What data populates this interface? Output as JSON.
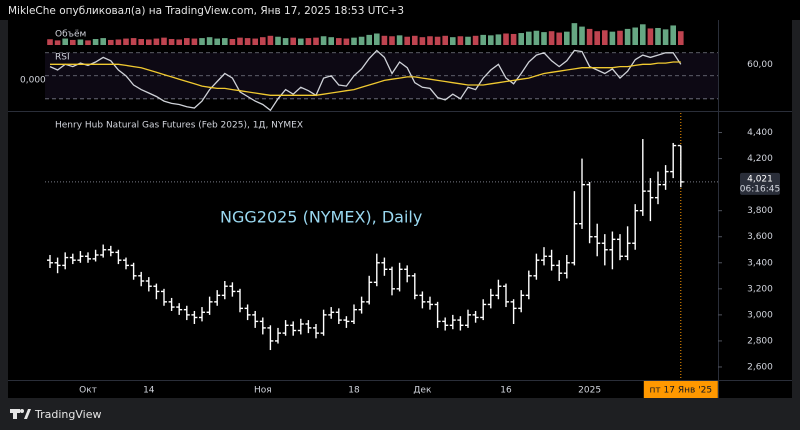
{
  "header": {
    "text": "MikleChe опубликовал(а) на TradingView.com, Янв 17, 2025 18:53 UTC+3",
    "brand": "TradingView"
  },
  "chart_data": [
    {
      "type": "bar",
      "title": "Объём",
      "values": [
        25,
        20,
        28,
        22,
        24,
        20,
        26,
        30,
        22,
        24,
        28,
        30,
        26,
        24,
        28,
        32,
        26,
        24,
        30,
        28,
        30,
        34,
        28,
        30,
        26,
        32,
        30,
        28,
        34,
        40,
        36,
        30,
        32,
        28,
        30,
        32,
        38,
        34,
        30,
        28,
        32,
        36,
        44,
        50,
        40,
        38,
        42,
        36,
        40,
        34,
        38,
        36,
        40,
        34,
        38,
        36,
        40,
        44,
        42,
        46,
        50,
        48,
        52,
        58,
        62,
        56,
        60,
        54,
        58,
        95,
        80,
        70,
        60,
        64,
        58,
        62,
        70,
        76,
        90,
        72,
        74,
        68,
        85,
        60
      ],
      "ylim": [
        0,
        100
      ],
      "up_color": "#78c49a",
      "down_color": "#e0505e"
    },
    {
      "type": "line",
      "title": "RSI",
      "left_label": "0,000",
      "series": [
        {
          "color": "#cfd2d8",
          "values": [
            58,
            55,
            60,
            58,
            61,
            59,
            62,
            66,
            63,
            55,
            50,
            42,
            38,
            35,
            32,
            28,
            26,
            25,
            23,
            22,
            28,
            38,
            45,
            52,
            48,
            36,
            32,
            28,
            25,
            20,
            30,
            38,
            34,
            40,
            37,
            33,
            48,
            50,
            42,
            41,
            50,
            56,
            65,
            72,
            66,
            52,
            62,
            57,
            44,
            40,
            39,
            31,
            29,
            34,
            30,
            40,
            38,
            48,
            55,
            60,
            48,
            43,
            52,
            62,
            68,
            70,
            63,
            58,
            63,
            72,
            71,
            58,
            55,
            52,
            56,
            48,
            54,
            64,
            68,
            66,
            68,
            70,
            70,
            60
          ]
        },
        {
          "color": "#f0c930",
          "values": [
            60,
            60,
            60,
            60,
            60,
            60,
            60,
            60,
            60,
            60,
            59,
            58,
            57,
            55,
            53,
            51,
            49,
            47,
            45,
            43,
            41,
            40,
            39,
            39,
            38,
            37,
            36,
            35,
            34,
            33,
            33,
            33,
            33,
            33,
            33,
            33,
            34,
            35,
            36,
            37,
            38,
            40,
            42,
            44,
            46,
            47,
            48,
            49,
            49,
            48,
            47,
            46,
            45,
            44,
            43,
            42,
            42,
            42,
            43,
            44,
            45,
            46,
            47,
            48,
            50,
            52,
            53,
            54,
            55,
            56,
            57,
            57,
            57,
            57,
            57,
            58,
            58,
            59,
            60,
            60,
            61,
            61,
            62,
            62
          ]
        }
      ],
      "ylim": [
        22,
        75
      ],
      "yticks": [
        {
          "value": 60,
          "label": "60,00"
        }
      ],
      "levels": [
        70,
        50,
        30
      ],
      "band_color": "#7e57c2"
    },
    {
      "type": "ohlc",
      "title": "Henry Hub Natural Gas Futures (Feb 2025), 1Д, NYMEX",
      "annotation": "NGG2025 (NYMEX), Daily",
      "categories": [
        null,
        null,
        null,
        null,
        null,
        "Окт",
        null,
        null,
        null,
        null,
        null,
        null,
        null,
        "14",
        null,
        null,
        null,
        null,
        null,
        null,
        null,
        null,
        null,
        null,
        null,
        null,
        null,
        null,
        "Ноя",
        null,
        null,
        null,
        null,
        null,
        null,
        null,
        null,
        null,
        null,
        null,
        "18",
        null,
        null,
        null,
        null,
        null,
        null,
        null,
        null,
        "Дек",
        null,
        null,
        null,
        null,
        null,
        null,
        null,
        null,
        null,
        null,
        "16",
        null,
        null,
        null,
        null,
        null,
        null,
        null,
        null,
        null,
        null,
        "2025",
        null,
        null,
        null,
        null,
        null,
        null,
        null,
        null,
        null,
        null,
        null,
        "пт 17 Янв '25"
      ],
      "open": [
        3.42,
        3.4,
        3.38,
        3.44,
        3.42,
        3.45,
        3.43,
        3.46,
        3.5,
        3.48,
        3.42,
        3.38,
        3.3,
        3.26,
        3.22,
        3.18,
        3.1,
        3.06,
        3.04,
        3.0,
        2.98,
        3.02,
        3.1,
        3.15,
        3.22,
        3.18,
        3.05,
        3.0,
        2.95,
        2.9,
        2.8,
        2.86,
        2.92,
        2.88,
        2.93,
        2.9,
        2.86,
        3.0,
        3.02,
        2.96,
        2.95,
        3.04,
        3.1,
        3.25,
        3.4,
        3.35,
        3.2,
        3.35,
        3.3,
        3.15,
        3.1,
        3.08,
        2.95,
        2.92,
        2.96,
        2.92,
        3.0,
        2.98,
        3.08,
        3.15,
        3.22,
        3.1,
        3.05,
        3.15,
        3.3,
        3.42,
        3.45,
        3.38,
        3.32,
        3.4,
        3.7,
        4.0,
        3.6,
        3.55,
        3.5,
        3.58,
        3.45,
        3.55,
        3.8,
        3.95,
        3.9,
        4.0,
        4.1,
        4.3
      ],
      "high": [
        3.46,
        3.44,
        3.48,
        3.47,
        3.49,
        3.48,
        3.5,
        3.54,
        3.53,
        3.5,
        3.44,
        3.4,
        3.33,
        3.29,
        3.24,
        3.2,
        3.13,
        3.09,
        3.07,
        3.03,
        3.06,
        3.14,
        3.19,
        3.26,
        3.25,
        3.2,
        3.08,
        3.03,
        2.98,
        2.92,
        2.9,
        2.96,
        2.95,
        2.97,
        2.96,
        2.93,
        3.04,
        3.06,
        3.05,
        2.99,
        3.08,
        3.14,
        3.3,
        3.47,
        3.44,
        3.37,
        3.4,
        3.38,
        3.32,
        3.18,
        3.14,
        3.1,
        2.98,
        3.0,
        2.99,
        3.04,
        3.03,
        3.12,
        3.2,
        3.27,
        3.24,
        3.12,
        3.19,
        3.34,
        3.47,
        3.52,
        3.5,
        3.42,
        3.46,
        3.95,
        4.2,
        4.02,
        3.7,
        3.62,
        3.64,
        3.62,
        3.68,
        3.85,
        4.35,
        4.05,
        4.1,
        4.15,
        4.32,
        4.3
      ],
      "low": [
        3.36,
        3.32,
        3.35,
        3.39,
        3.4,
        3.4,
        3.41,
        3.44,
        3.45,
        3.39,
        3.35,
        3.27,
        3.22,
        3.18,
        3.12,
        3.07,
        3.03,
        3.0,
        2.96,
        2.93,
        2.95,
        3.0,
        3.07,
        3.12,
        3.14,
        3.02,
        2.96,
        2.9,
        2.85,
        2.73,
        2.78,
        2.84,
        2.84,
        2.85,
        2.86,
        2.82,
        2.84,
        2.97,
        2.93,
        2.9,
        2.93,
        3.01,
        3.08,
        3.22,
        3.3,
        3.15,
        3.18,
        3.25,
        3.12,
        3.05,
        3.04,
        2.9,
        2.88,
        2.89,
        2.88,
        2.9,
        2.94,
        2.96,
        3.05,
        3.12,
        3.06,
        2.93,
        3.02,
        3.12,
        3.27,
        3.38,
        3.34,
        3.26,
        3.28,
        3.38,
        3.66,
        3.55,
        3.45,
        3.38,
        3.35,
        3.42,
        3.42,
        3.5,
        3.76,
        3.72,
        3.85,
        3.96,
        4.05,
        3.98
      ],
      "close": [
        3.4,
        3.38,
        3.44,
        3.42,
        3.45,
        3.43,
        3.46,
        3.5,
        3.48,
        3.42,
        3.38,
        3.3,
        3.26,
        3.22,
        3.18,
        3.1,
        3.06,
        3.04,
        3.0,
        2.98,
        3.02,
        3.1,
        3.15,
        3.22,
        3.18,
        3.05,
        3.0,
        2.95,
        2.9,
        2.8,
        2.86,
        2.92,
        2.88,
        2.93,
        2.9,
        2.86,
        3.0,
        3.02,
        2.96,
        2.95,
        3.04,
        3.1,
        3.25,
        3.4,
        3.35,
        3.2,
        3.35,
        3.3,
        3.15,
        3.1,
        3.08,
        2.95,
        2.92,
        2.96,
        2.92,
        3.0,
        2.98,
        3.08,
        3.15,
        3.22,
        3.1,
        3.05,
        3.15,
        3.3,
        3.42,
        3.45,
        3.38,
        3.32,
        3.4,
        3.7,
        4.0,
        3.6,
        3.55,
        3.5,
        3.58,
        3.45,
        3.55,
        3.8,
        3.95,
        3.9,
        4.0,
        4.1,
        4.3,
        4.021
      ],
      "color": "#ffffff",
      "ylim": [
        2.5,
        4.55
      ],
      "yticks": [
        {
          "value": 2.6,
          "label": "2,600"
        },
        {
          "value": 2.8,
          "label": "2,800"
        },
        {
          "value": 3.0,
          "label": "3,000"
        },
        {
          "value": 3.2,
          "label": "3,200"
        },
        {
          "value": 3.4,
          "label": "3,400"
        },
        {
          "value": 3.6,
          "label": "3,600"
        },
        {
          "value": 3.8,
          "label": "3,800"
        },
        {
          "value": 4.2,
          "label": "4,200"
        },
        {
          "value": 4.4,
          "label": "4,400"
        }
      ],
      "last_price": {
        "value": 4.021,
        "label": "4,021"
      },
      "countdown": "06:16:45",
      "marker_color": "#ff9800"
    }
  ]
}
